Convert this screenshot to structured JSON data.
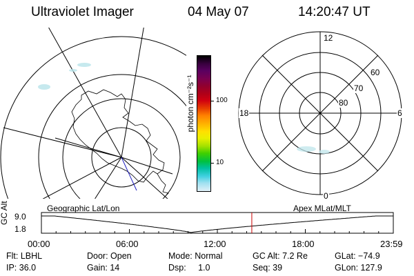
{
  "header": {
    "instrument": "Ultraviolet Imager",
    "date": "04 May 07",
    "time": "14:20:47 UT"
  },
  "colorbar": {
    "label": "photon cm⁻²s⁻¹",
    "ticks": [
      "100",
      "10"
    ],
    "colors": [
      "#000000",
      "#3a0040",
      "#5a0060",
      "#7a0050",
      "#900030",
      "#b00018",
      "#d00010",
      "#e84000",
      "#ff8000",
      "#ffb000",
      "#ffe000",
      "#e8f000",
      "#a0e000",
      "#40d000",
      "#00c040",
      "#00c0a0",
      "#40d0e0",
      "#a0e0f0",
      "#e0f0f8"
    ]
  },
  "polar_plot": {
    "mlt_labels": {
      "top": "12",
      "left": "18",
      "right": "6",
      "bottom": "0"
    },
    "lat_labels": [
      "60",
      "70",
      "80"
    ]
  },
  "timeline": {
    "left_title": "Geographic Lat/Lon",
    "right_title": "Apex MLat/MLT",
    "ylabel": "GC Alt",
    "ymax": "9.0",
    "ymin": "1.8",
    "xticks": [
      "00:00",
      "06:00",
      "12:00",
      "18:00",
      "23:59"
    ],
    "current_marker_hours": 14.35,
    "marker_color": "#cc0000"
  },
  "info": {
    "row1": {
      "filter": "Flt: LBHL",
      "door": "Door: Open",
      "mode": "Mode: Normal",
      "gc_alt": "GC Alt: 7.2 Re",
      "glat": "GLat: −74.9"
    },
    "row2": {
      "ip": "IP: 36.0",
      "gain": "Gain: 14",
      "dsp": "Dsp:     1.0",
      "seq": "Seq: 39",
      "glon": "GLon: 127.9"
    }
  }
}
